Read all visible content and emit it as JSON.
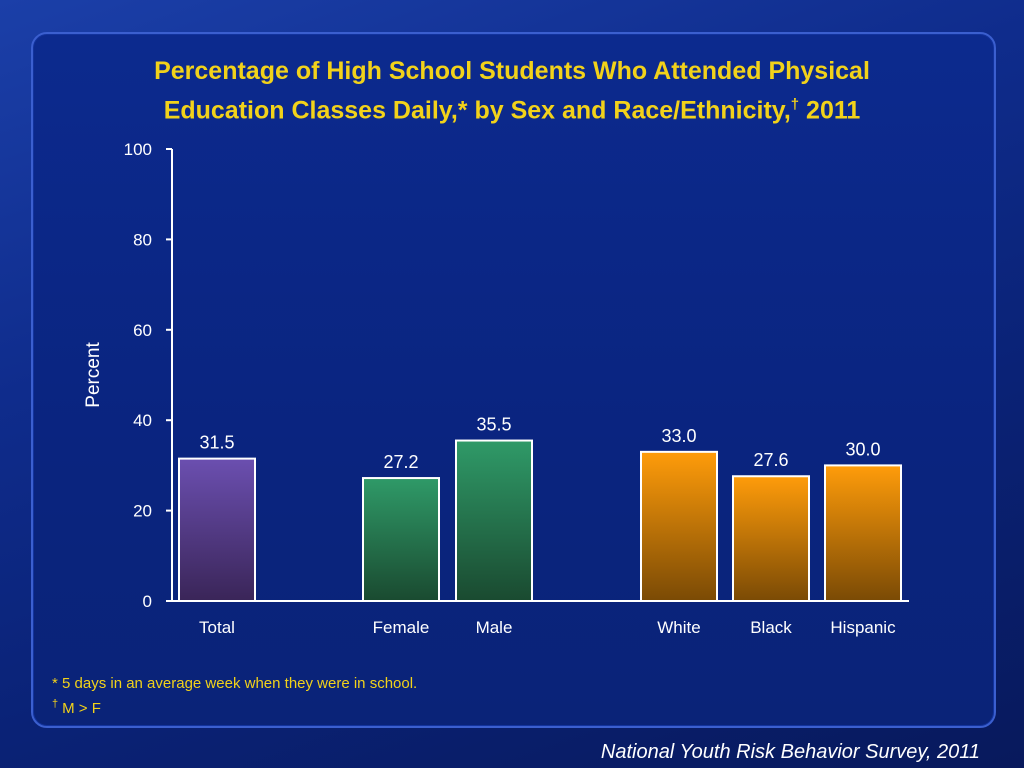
{
  "page": {
    "title_line1": "Percentage of High School Students Who Attended Physical",
    "title_line2": "Education Classes Daily,* by Sex and Race/Ethnicity,",
    "title_dagger": "†",
    "title_year": " 2011",
    "footnote1": "* 5 days in an average week when they were in school.",
    "footnote2_mark": "†",
    "footnote2_text": "M > F",
    "source": "National Youth Risk Behavior Survey, 2011"
  },
  "chart_data": {
    "type": "bar",
    "title": "Percentage of High School Students Who Attended Physical Education Classes Daily,* by Sex and Race/Ethnicity,† 2011",
    "ylabel": "Percent",
    "xlabel": "",
    "ylim": [
      0,
      100
    ],
    "yticks": [
      0,
      20,
      40,
      60,
      80,
      100
    ],
    "grid": false,
    "categories": [
      "Total",
      "Female",
      "Male",
      "White",
      "Black",
      "Hispanic"
    ],
    "values": [
      31.5,
      27.2,
      35.5,
      33.0,
      27.6,
      30.0
    ],
    "value_labels": [
      "31.5",
      "27.2",
      "35.5",
      "33.0",
      "27.6",
      "30.0"
    ],
    "groups": [
      "total",
      "sex",
      "sex",
      "race",
      "race",
      "race"
    ],
    "group_colors": {
      "total": [
        "#6b4fb0",
        "#3a2558"
      ],
      "sex": [
        "#2f9a68",
        "#1a4a30"
      ],
      "race": [
        "#ff9c0a",
        "#7a4a05"
      ]
    }
  }
}
